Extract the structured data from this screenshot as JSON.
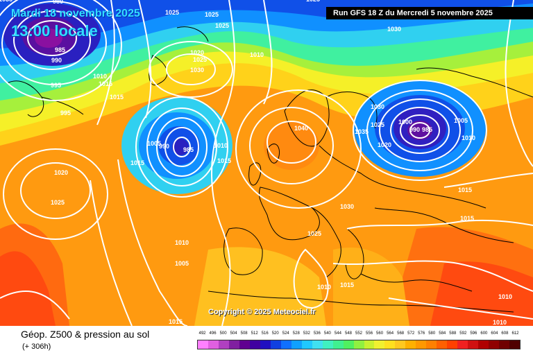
{
  "header": {
    "date": "Mardi 18 novembre 2025",
    "time": "13:00 locale",
    "run": "Run GFS 18 Z du Mercredi 5 novembre 2025"
  },
  "copyright": "Copyright © 2025 Meteociel.fr",
  "footer": {
    "title": "Géop. Z500 & pression au sol",
    "subtitle": "(+ 306h)"
  },
  "legend": {
    "values": [
      "492",
      "496",
      "500",
      "504",
      "508",
      "512",
      "516",
      "520",
      "524",
      "528",
      "532",
      "536",
      "540",
      "544",
      "548",
      "552",
      "556",
      "560",
      "564",
      "568",
      "572",
      "576",
      "580",
      "584",
      "588",
      "592",
      "596",
      "600",
      "604",
      "608",
      "612"
    ],
    "colors": [
      "#ff80ff",
      "#e060e0",
      "#b040c0",
      "#8020a0",
      "#600090",
      "#4000a0",
      "#2010c0",
      "#1040e0",
      "#1070ff",
      "#10a0ff",
      "#20c8ff",
      "#40e0f0",
      "#40f0c0",
      "#40f090",
      "#50f060",
      "#90f040",
      "#c8f030",
      "#f0f030",
      "#ffe020",
      "#ffc820",
      "#ffb000",
      "#ff9800",
      "#ff8000",
      "#ff6000",
      "#ff4000",
      "#f02020",
      "#d01010",
      "#b00000",
      "#900000",
      "#700000",
      "#500000"
    ]
  },
  "isobar_labels": [
    {
      "text": "1025"
    },
    {
      "text": "1025"
    },
    {
      "text": "1025"
    },
    {
      "text": "1025"
    },
    {
      "text": "1020"
    },
    {
      "text": "1025"
    },
    {
      "text": "1030"
    },
    {
      "text": "1030"
    },
    {
      "text": "1010"
    },
    {
      "text": "980"
    },
    {
      "text": "985"
    },
    {
      "text": "990"
    },
    {
      "text": "995"
    },
    {
      "text": "995"
    },
    {
      "text": "1010"
    },
    {
      "text": "1015"
    },
    {
      "text": "1015"
    },
    {
      "text": "1020"
    },
    {
      "text": "1025"
    },
    {
      "text": "1005"
    },
    {
      "text": "990"
    },
    {
      "text": "985"
    },
    {
      "text": "1015"
    },
    {
      "text": "1010"
    },
    {
      "text": "1015"
    },
    {
      "text": "1040"
    },
    {
      "text": "1030"
    },
    {
      "text": "1035"
    },
    {
      "text": "1025"
    },
    {
      "text": "1020"
    },
    {
      "text": "1000"
    },
    {
      "text": "990"
    },
    {
      "text": "985"
    },
    {
      "text": "1005"
    },
    {
      "text": "1010"
    },
    {
      "text": "1030"
    },
    {
      "text": "1025"
    },
    {
      "text": "1015"
    },
    {
      "text": "1015"
    },
    {
      "text": "1010"
    },
    {
      "text": "1005"
    },
    {
      "text": "1010"
    },
    {
      "text": "1015"
    },
    {
      "text": "1015"
    },
    {
      "text": "1010"
    },
    {
      "text": "1010"
    },
    {
      "text": "1035"
    }
  ]
}
